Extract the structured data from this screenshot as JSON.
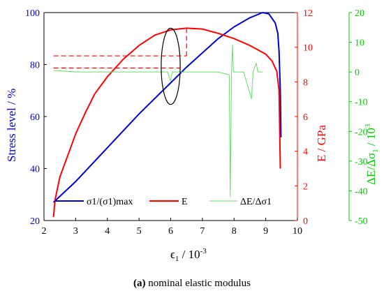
{
  "caption": {
    "label": "(a)",
    "text": " nominal elastic modulus"
  },
  "chart_data": {
    "type": "line",
    "xlabel": "ϵ1 / 10-3",
    "xlim": [
      2,
      10
    ],
    "x_ticks": [
      2,
      3,
      4,
      5,
      6,
      7,
      8,
      9,
      10
    ],
    "axes": {
      "left": {
        "label": "Stress level / %",
        "lim": [
          20,
          100
        ],
        "ticks": [
          20,
          40,
          60,
          80,
          100
        ],
        "color": "#0000cc"
      },
      "right1": {
        "label": "E / GPa",
        "lim": [
          0,
          12
        ],
        "ticks": [
          0,
          2,
          4,
          6,
          8,
          10,
          12
        ],
        "color": "#ff0000"
      },
      "right2": {
        "label": "ΔE/Δσ1 / 103",
        "lim": [
          -50,
          20
        ],
        "ticks": [
          -50,
          -40,
          -30,
          -20,
          -10,
          0,
          10,
          20
        ],
        "color": "#00cc00"
      }
    },
    "series": [
      {
        "name": "σ1/(σ1)max",
        "axis": "left",
        "color": "#0000cc",
        "points": [
          [
            2.3,
            27
          ],
          [
            3.0,
            35
          ],
          [
            4.0,
            48
          ],
          [
            5.0,
            61
          ],
          [
            6.0,
            73
          ],
          [
            6.5,
            79
          ],
          [
            7.0,
            84.5
          ],
          [
            7.5,
            90
          ],
          [
            8.0,
            94.5
          ],
          [
            8.5,
            98
          ],
          [
            8.9,
            100
          ],
          [
            9.1,
            99.5
          ],
          [
            9.3,
            96
          ],
          [
            9.38,
            92
          ],
          [
            9.42,
            85
          ],
          [
            9.46,
            70
          ],
          [
            9.48,
            52
          ]
        ]
      },
      {
        "name": "E",
        "axis": "right1",
        "color": "#ff0000",
        "points": [
          [
            2.3,
            0.2
          ],
          [
            2.35,
            1.2
          ],
          [
            2.5,
            2.5
          ],
          [
            2.8,
            4.0
          ],
          [
            3.0,
            5.0
          ],
          [
            3.3,
            6.2
          ],
          [
            3.6,
            7.3
          ],
          [
            4.0,
            8.3
          ],
          [
            4.5,
            9.3
          ],
          [
            5.0,
            10.1
          ],
          [
            5.5,
            10.7
          ],
          [
            6.0,
            11.0
          ],
          [
            6.5,
            11.1
          ],
          [
            7.0,
            11.05
          ],
          [
            7.5,
            10.8
          ],
          [
            8.0,
            10.5
          ],
          [
            8.5,
            10.1
          ],
          [
            8.8,
            9.8
          ],
          [
            9.0,
            9.6
          ],
          [
            9.2,
            9.2
          ],
          [
            9.35,
            8.6
          ],
          [
            9.42,
            7.5
          ],
          [
            9.46,
            3.0
          ]
        ]
      },
      {
        "name": "ΔE/Δσ1",
        "axis": "right2",
        "color": "#66dd66",
        "points": [
          [
            2.3,
            0.5
          ],
          [
            3.0,
            0
          ],
          [
            4.0,
            0
          ],
          [
            5.0,
            0
          ],
          [
            5.9,
            0
          ],
          [
            6.0,
            -3
          ],
          [
            6.05,
            0
          ],
          [
            6.5,
            0
          ],
          [
            7.0,
            0
          ],
          [
            7.5,
            0
          ],
          [
            7.85,
            -1
          ],
          [
            7.88,
            -42
          ],
          [
            7.92,
            0
          ],
          [
            7.95,
            9
          ],
          [
            7.98,
            0
          ],
          [
            8.3,
            0
          ],
          [
            8.55,
            -9
          ],
          [
            8.6,
            0
          ],
          [
            8.7,
            3
          ],
          [
            8.75,
            0
          ],
          [
            8.9,
            0
          ]
        ]
      }
    ],
    "annotations": [
      {
        "type": "dashed-line",
        "color": "#ff0000",
        "points": [
          [
            2.3,
            9.5
          ],
          [
            6.5,
            9.5
          ]
        ]
      },
      {
        "type": "dashed-line",
        "color": "#ff0000",
        "points": [
          [
            2.3,
            8.8
          ],
          [
            6.3,
            8.8
          ]
        ]
      },
      {
        "type": "dashed-line",
        "color": "#ff0000",
        "points": [
          [
            6.5,
            11.1
          ],
          [
            6.5,
            9.5
          ]
        ]
      },
      {
        "type": "ellipse",
        "color": "#000000",
        "center": [
          6.0,
          8.9
        ],
        "rx": 0.3,
        "ry": 2.2
      }
    ],
    "legend": [
      {
        "text": "σ1/(σ1)max",
        "color": "#0000cc"
      },
      {
        "text": "E",
        "color": "#ff0000"
      },
      {
        "text": "ΔE/Δσ1",
        "color": "#66dd66"
      }
    ],
    "legend_position": "bottom",
    "grid": false
  }
}
